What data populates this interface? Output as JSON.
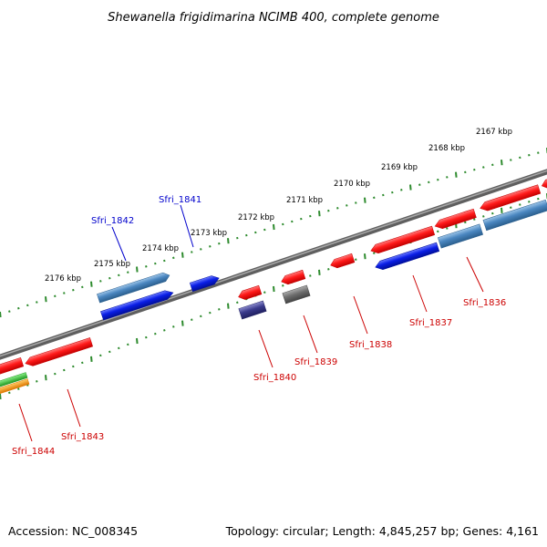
{
  "title": "Shewanella frigidimarina NCIMB 400, complete genome",
  "footer": {
    "accession": "Accession: NC_008345",
    "summary": "Topology: circular; Length: 4,845,257 bp; Genes: 4,161"
  },
  "colors": {
    "backbone": "#7a7a7a",
    "ticks": "#2e8b2e",
    "forward_label": "#0000cc",
    "reverse_label": "#cc0000",
    "red_gene": "#ff1a1a",
    "blue_gene": "#0a1ee6",
    "steel_gene": "#4a86c0",
    "navy_gene": "#3a3a8c",
    "gray_gene": "#6e6e6e",
    "green_gene": "#33bb33",
    "orange_gene": "#ff9900"
  },
  "scale": {
    "labels": [
      "2167 kbp",
      "2168 kbp",
      "2169 kbp",
      "2170 kbp",
      "2171 kbp",
      "2172 kbp",
      "2173 kbp",
      "2174 kbp",
      "2175 kbp",
      "2176 kbp"
    ]
  },
  "gene_labels": {
    "forward": [
      "Sfri_1841",
      "Sfri_1842"
    ],
    "reverse": [
      "Sfri_1836",
      "Sfri_1837",
      "Sfri_1838",
      "Sfri_1839",
      "Sfri_1840",
      "Sfri_1843",
      "Sfri_1844"
    ]
  }
}
